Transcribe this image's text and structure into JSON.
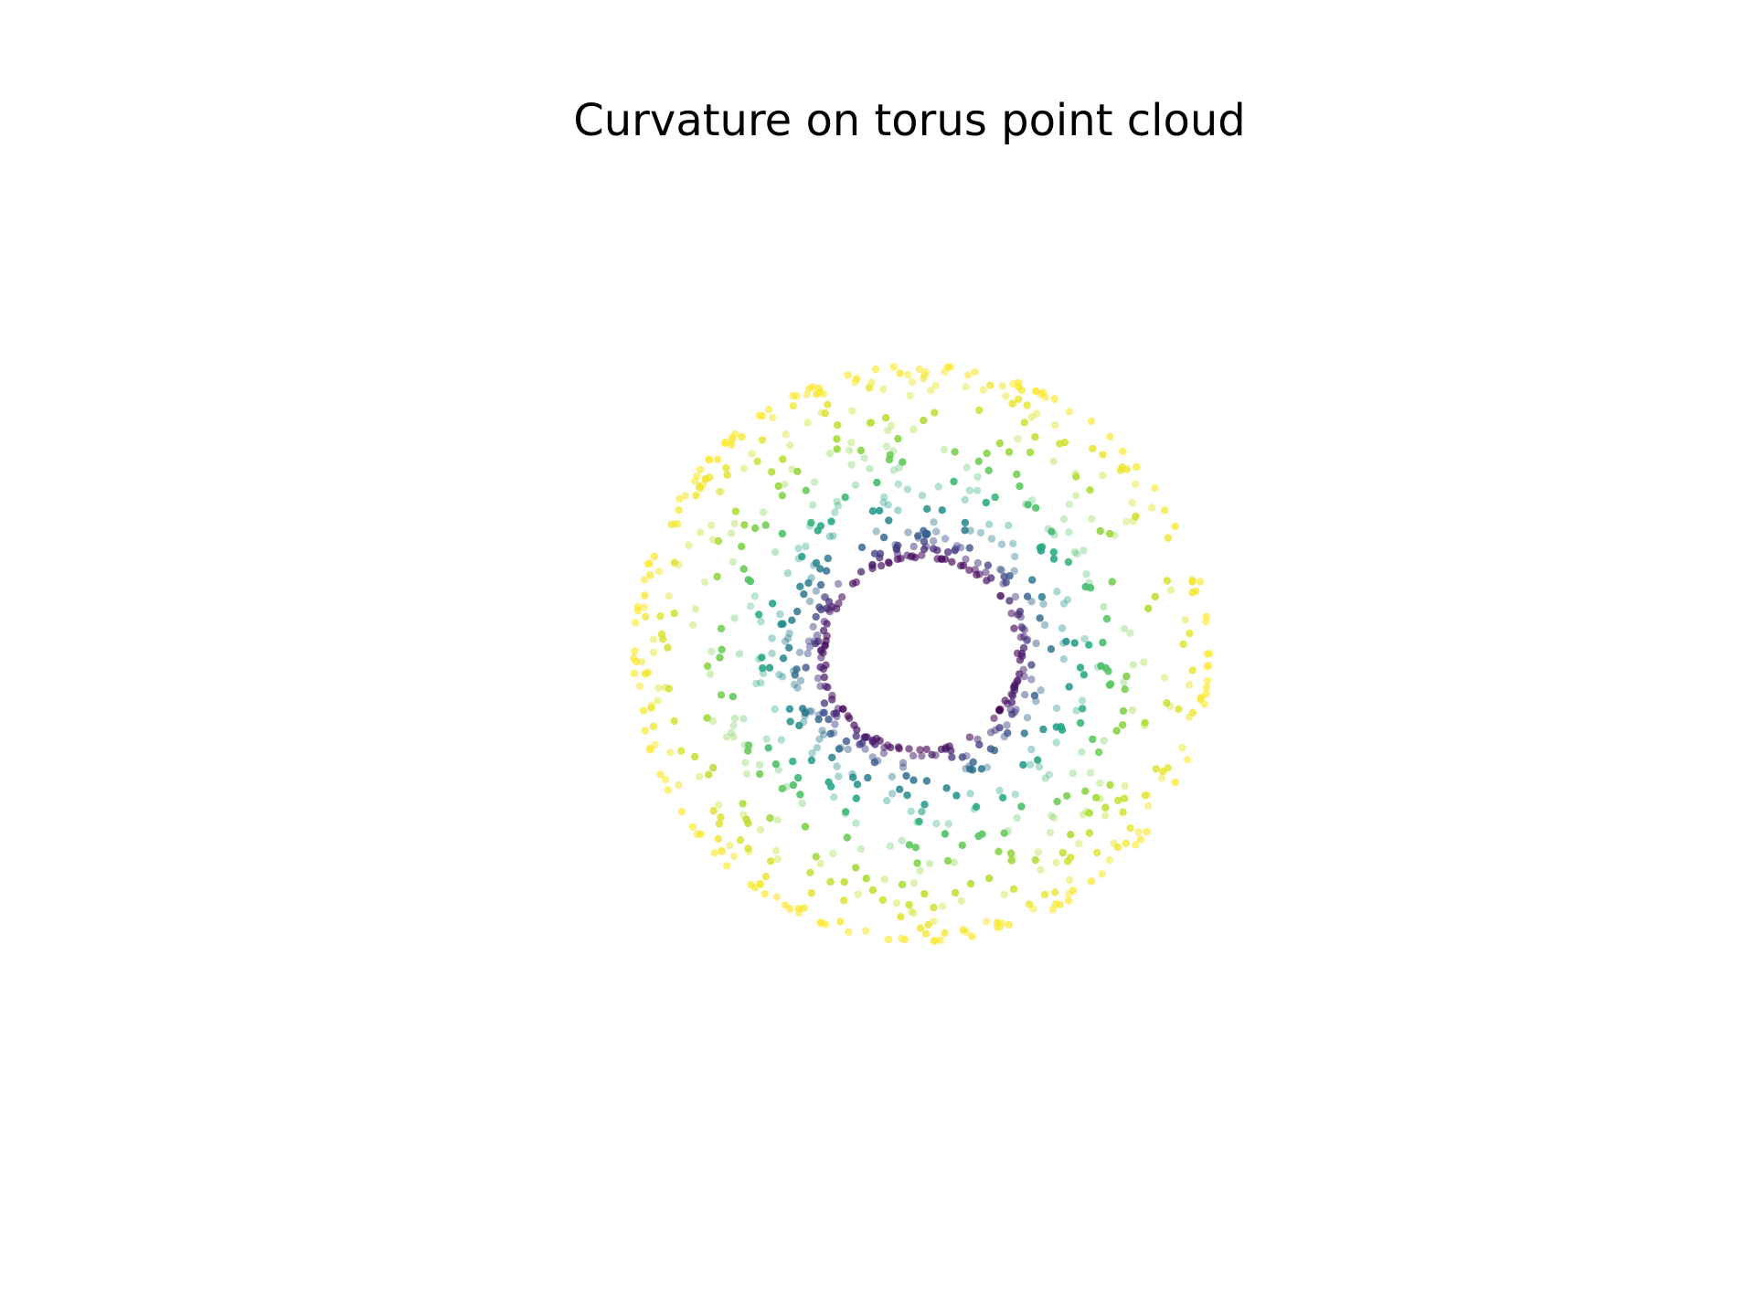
{
  "chart_data": {
    "type": "scatter",
    "title": "Curvature on torus point cloud",
    "view": "top-down projection of a torus",
    "axes_visible": false,
    "grid": false,
    "colormap": "viridis",
    "torus": {
      "major_radius": 2.0,
      "minor_radius": 1.0
    },
    "curvature_range": [
      -1.0,
      0.33
    ],
    "point_count": 1000,
    "color_by": "curvature",
    "x_range": [
      -3.0,
      3.0
    ],
    "y_range": [
      -3.0,
      3.0
    ]
  }
}
